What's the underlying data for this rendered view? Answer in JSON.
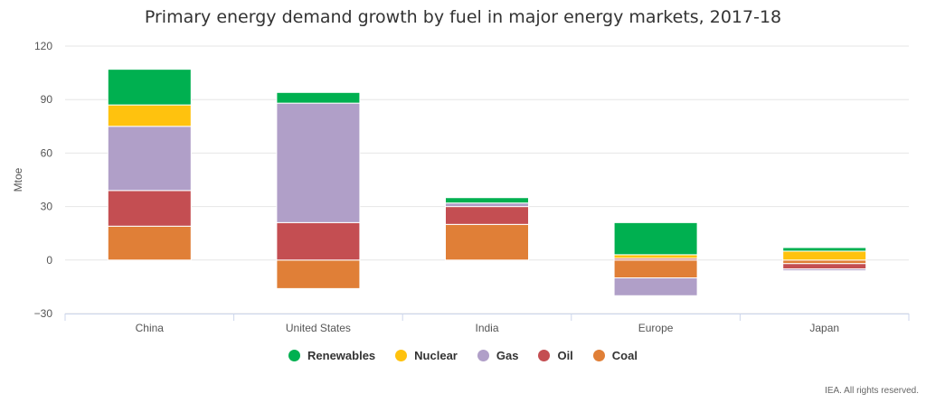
{
  "chart_data": {
    "type": "bar",
    "stacked": true,
    "title": "Primary energy demand growth by fuel in major energy markets, 2017-18",
    "ylabel": "Mtoe",
    "xlabel": "",
    "ylim": [
      -30,
      120
    ],
    "yticks": [
      -30,
      0,
      30,
      60,
      90,
      120
    ],
    "grid": true,
    "legend_position": "bottom",
    "categories": [
      "China",
      "United States",
      "India",
      "Europe",
      "Japan"
    ],
    "series": [
      {
        "name": "Coal",
        "color": "#e07f37",
        "values": [
          19,
          -16,
          20,
          -10,
          -2
        ]
      },
      {
        "name": "Oil",
        "color": "#c44e52",
        "values": [
          20,
          21,
          10,
          1,
          -3
        ]
      },
      {
        "name": "Gas",
        "color": "#b09fc8",
        "values": [
          36,
          67,
          2,
          -10,
          -1
        ]
      },
      {
        "name": "Nuclear",
        "color": "#ffc20e",
        "values": [
          12,
          0,
          0,
          2,
          5
        ]
      },
      {
        "name": "Renewables",
        "color": "#00b050",
        "values": [
          20,
          6,
          3,
          18,
          2
        ]
      }
    ],
    "legend_order": [
      "Renewables",
      "Nuclear",
      "Gas",
      "Oil",
      "Coal"
    ]
  },
  "footer": {
    "credit": "IEA. All rights reserved."
  }
}
